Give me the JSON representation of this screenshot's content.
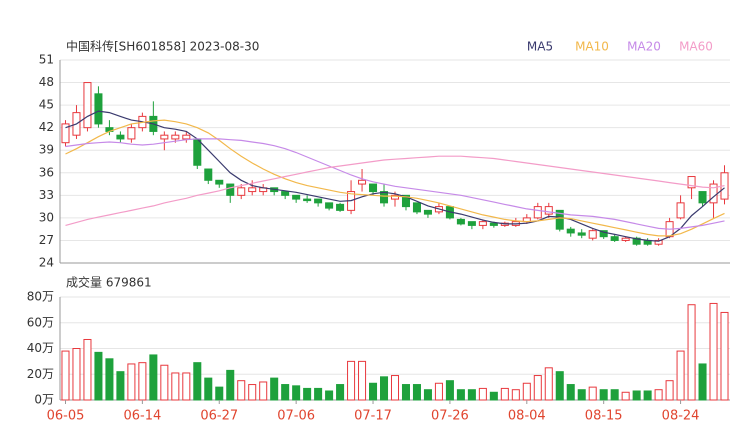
{
  "chart_data": [
    {
      "type": "candlestick",
      "title": "中国科传[SH601858] 2023-08-30",
      "up_color": "#e8383d",
      "down_color": "#1ea13c",
      "open": [
        40,
        41,
        42,
        46.5,
        42,
        41,
        40.5,
        42,
        43.5,
        40.5,
        40.5,
        40.5,
        40.5,
        36.5,
        35,
        34.5,
        33,
        33.5,
        33.5,
        34,
        33.5,
        33,
        32.5,
        32.5,
        32,
        31.8,
        31,
        34.5,
        34.5,
        33.5,
        32.5,
        33,
        32,
        31,
        30.8,
        31.5,
        29.8,
        29.5,
        29,
        29.3,
        29,
        29,
        29.5,
        30,
        30.5,
        31,
        28.5,
        28,
        27.3,
        28.3,
        27.5,
        27,
        27.3,
        27,
        26.5,
        27.5,
        30,
        34,
        33.5,
        32,
        32.5
      ],
      "high": [
        43,
        45,
        48,
        47.5,
        43,
        41.5,
        42.5,
        44,
        45.5,
        41.5,
        41.5,
        41.5,
        40.5,
        36.5,
        35,
        34.5,
        34.5,
        35,
        34.5,
        34,
        33.5,
        33,
        33,
        32.5,
        32,
        32,
        35,
        36.5,
        34.5,
        34.5,
        33.5,
        33,
        32,
        31,
        32,
        31.5,
        30,
        29.5,
        29.8,
        29.5,
        29.5,
        30,
        30.5,
        32,
        32,
        31,
        28.8,
        28.5,
        28.5,
        28.3,
        27.8,
        27.5,
        27.5,
        27.3,
        27.3,
        30,
        33,
        35.5,
        33.5,
        35,
        37
      ],
      "low": [
        39.5,
        40.5,
        41.5,
        42,
        41,
        40,
        40,
        41.5,
        41,
        39,
        40,
        40,
        36.5,
        34.5,
        34,
        32,
        32.5,
        33,
        33,
        33,
        32.5,
        32,
        32,
        31.5,
        31,
        30.8,
        30.5,
        33.5,
        33,
        31.5,
        31.5,
        31,
        30.5,
        30,
        30.5,
        29.8,
        29,
        28.5,
        28.5,
        28.7,
        28.8,
        28.8,
        29.2,
        29.8,
        30,
        28.2,
        27.5,
        27.3,
        27,
        27.2,
        26.8,
        26.8,
        26.3,
        26.3,
        26.3,
        27.3,
        29.8,
        32.5,
        31.5,
        30,
        31.8
      ],
      "close": [
        42.5,
        44,
        48,
        42.5,
        41.5,
        40.5,
        42,
        43.5,
        41.5,
        41,
        41,
        41,
        37,
        35,
        34.5,
        33,
        34,
        34,
        34,
        33.5,
        33,
        32.5,
        32.3,
        32,
        31.3,
        31,
        33.5,
        35,
        33.5,
        32,
        33,
        31.5,
        30.8,
        30.5,
        31.5,
        30,
        29.2,
        29,
        29.5,
        29,
        29.3,
        29.5,
        30,
        31.5,
        31.5,
        28.5,
        28,
        27.7,
        28.3,
        27.5,
        27,
        27.3,
        26.5,
        26.5,
        27,
        29.5,
        32,
        35.5,
        32,
        34.5,
        36
      ],
      "series": [
        {
          "name": "MA5",
          "color": "#3a3a6e",
          "values": [
            42,
            42.5,
            43.5,
            44.2,
            44,
            43.5,
            43,
            42.8,
            42.5,
            42,
            41.8,
            41.5,
            40.5,
            39,
            37.5,
            36,
            35,
            34.3,
            34,
            33.8,
            33.6,
            33.4,
            33.1,
            32.8,
            32.5,
            32.2,
            32.3,
            32.8,
            33.2,
            33.4,
            33.2,
            32.8,
            32.2,
            31.6,
            31.2,
            30.8,
            30.5,
            30.1,
            29.7,
            29.4,
            29.2,
            29.2,
            29.3,
            29.6,
            30.2,
            30.1,
            29.8,
            29.2,
            28.6,
            28.1,
            27.8,
            27.5,
            27.2,
            27,
            26.9,
            27.5,
            28.6,
            30.3,
            31.5,
            32.8,
            34
          ]
        },
        {
          "name": "MA10",
          "color": "#f2b84b",
          "values": [
            38.5,
            39.2,
            40,
            40.8,
            41.5,
            42,
            42.5,
            42.7,
            42.9,
            43,
            42.8,
            42.5,
            42,
            41.3,
            40.3,
            39.2,
            38.2,
            37.3,
            36.5,
            35.8,
            35.2,
            34.7,
            34.3,
            34,
            33.7,
            33.4,
            33.2,
            33.1,
            33,
            32.9,
            32.9,
            32.8,
            32.6,
            32.3,
            32,
            31.6,
            31.2,
            30.8,
            30.4,
            30.1,
            29.8,
            29.6,
            29.5,
            29.6,
            29.8,
            30,
            29.9,
            29.6,
            29.3,
            29,
            28.7,
            28.4,
            28.1,
            27.8,
            27.6,
            27.6,
            27.9,
            28.5,
            29.2,
            29.9,
            30.6
          ]
        },
        {
          "name": "MA20",
          "color": "#c68ae8",
          "values": [
            39.5,
            39.7,
            39.9,
            40,
            40.1,
            40,
            39.8,
            39.7,
            39.8,
            40,
            40.2,
            40.4,
            40.5,
            40.5,
            40.5,
            40.4,
            40.3,
            40.1,
            39.9,
            39.6,
            39.2,
            38.7,
            38.1,
            37.5,
            36.9,
            36.3,
            35.7,
            35.2,
            34.8,
            34.5,
            34.2,
            34,
            33.8,
            33.6,
            33.4,
            33.2,
            33,
            32.7,
            32.4,
            32.1,
            31.8,
            31.5,
            31.2,
            31,
            30.8,
            30.6,
            30.4,
            30.3,
            30.2,
            30,
            29.8,
            29.5,
            29.2,
            28.9,
            28.6,
            28.5,
            28.6,
            28.8,
            29,
            29.3,
            29.6
          ]
        },
        {
          "name": "MA60",
          "color": "#f39cc8",
          "values": [
            29,
            29.4,
            29.8,
            30.1,
            30.4,
            30.7,
            31,
            31.3,
            31.6,
            32,
            32.3,
            32.6,
            33,
            33.3,
            33.6,
            34,
            34.3,
            34.6,
            34.9,
            35.2,
            35.5,
            35.8,
            36.1,
            36.4,
            36.7,
            36.9,
            37.1,
            37.3,
            37.5,
            37.7,
            37.8,
            37.9,
            38,
            38.1,
            38.2,
            38.2,
            38.2,
            38.1,
            38,
            37.9,
            37.7,
            37.5,
            37.3,
            37.1,
            36.9,
            36.7,
            36.5,
            36.3,
            36.1,
            35.9,
            35.7,
            35.5,
            35.3,
            35.1,
            34.9,
            34.7,
            34.5,
            34.3,
            34.1,
            34,
            34.3
          ]
        }
      ],
      "ylim": [
        24,
        51
      ],
      "yticks": [
        24,
        27,
        30,
        33,
        36,
        39,
        42,
        45,
        48,
        51
      ],
      "grid": true
    },
    {
      "type": "volume",
      "title": "成交量 679861",
      "categories": [
        "06-05",
        null,
        null,
        null,
        null,
        null,
        null,
        "06-14",
        null,
        null,
        null,
        null,
        null,
        null,
        "06-27",
        null,
        null,
        null,
        null,
        null,
        null,
        "07-06",
        null,
        null,
        null,
        null,
        null,
        null,
        "07-17",
        null,
        null,
        null,
        null,
        null,
        null,
        "07-26",
        null,
        null,
        null,
        null,
        null,
        null,
        "08-04",
        null,
        null,
        null,
        null,
        null,
        null,
        "08-15",
        null,
        null,
        null,
        null,
        null,
        null,
        "08-24",
        null,
        null,
        null,
        null
      ],
      "values": [
        38,
        40,
        47,
        37,
        32,
        22,
        28,
        29,
        35,
        27,
        21,
        21,
        29,
        17,
        10,
        23,
        15,
        12,
        14,
        17,
        12,
        11,
        9,
        9,
        7,
        12,
        30,
        30,
        13,
        18,
        19,
        12,
        12,
        8,
        13,
        15,
        8,
        8,
        9,
        6,
        9,
        8,
        13,
        19,
        25,
        22,
        12,
        8,
        10,
        8,
        8,
        6,
        7,
        7,
        8,
        15,
        38,
        74,
        28,
        75,
        68
      ],
      "ylim": [
        0,
        80
      ],
      "yticks": [
        {
          "value": 0,
          "label": "0万"
        },
        {
          "value": 20,
          "label": "20万"
        },
        {
          "value": 40,
          "label": "40万"
        },
        {
          "value": 60,
          "label": "60万"
        },
        {
          "value": 80,
          "label": "80万"
        }
      ],
      "grid": true
    }
  ]
}
